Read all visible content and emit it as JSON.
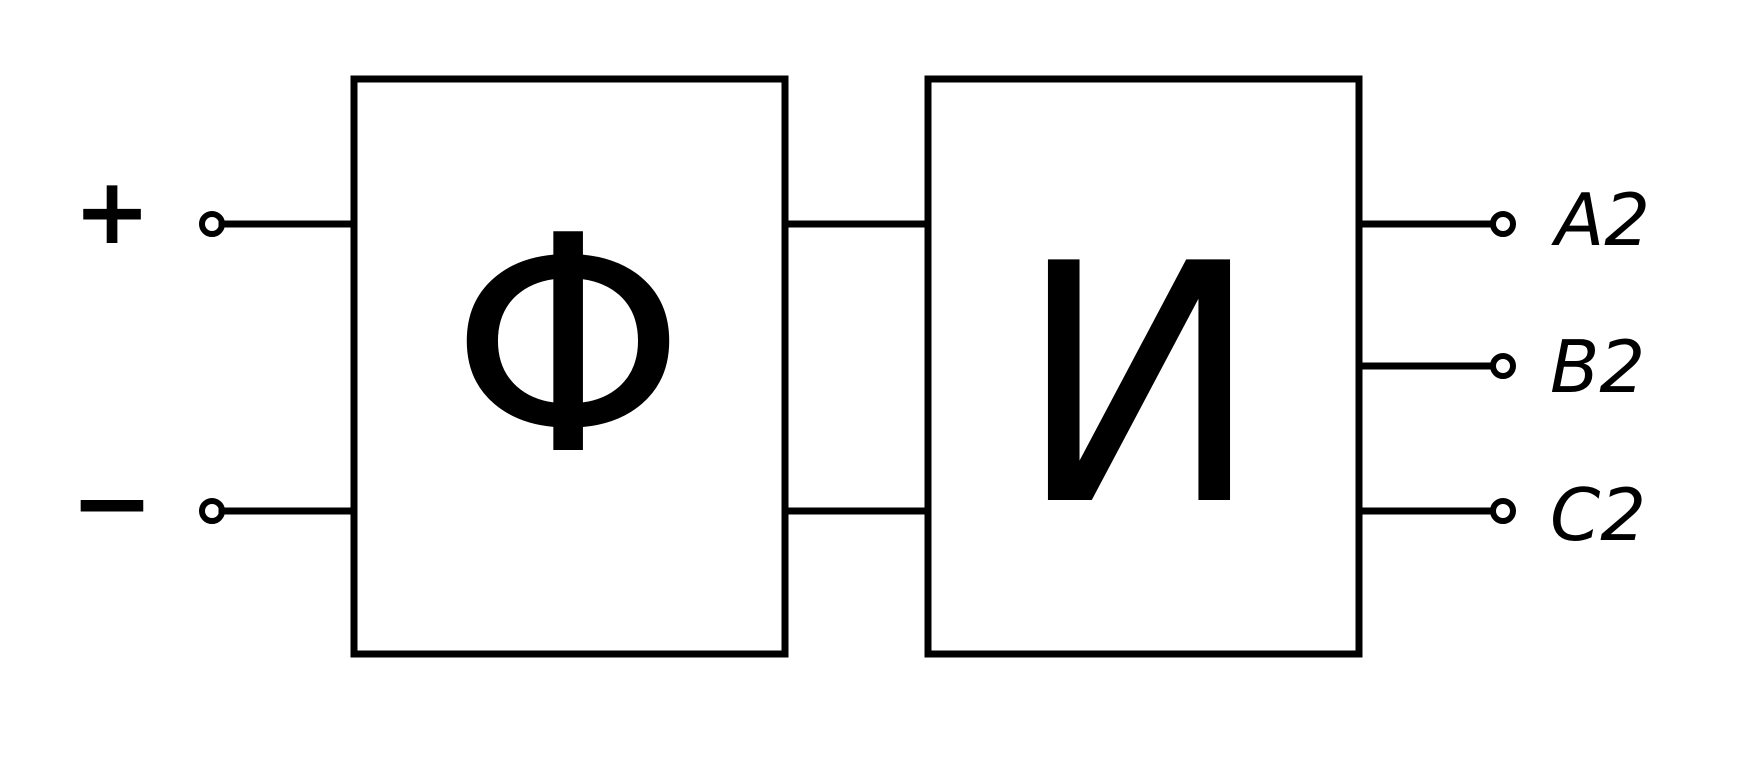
{
  "inputs": {
    "plus_label": "+",
    "minus_label": "−"
  },
  "blocks": {
    "converter_label": "Φ",
    "inverter_label": "И"
  },
  "outputs": {
    "a2_label": "A2",
    "b2_label": "B2",
    "c2_label": "C2"
  },
  "colors": {
    "stroke": "#000000",
    "background": "#ffffff"
  }
}
